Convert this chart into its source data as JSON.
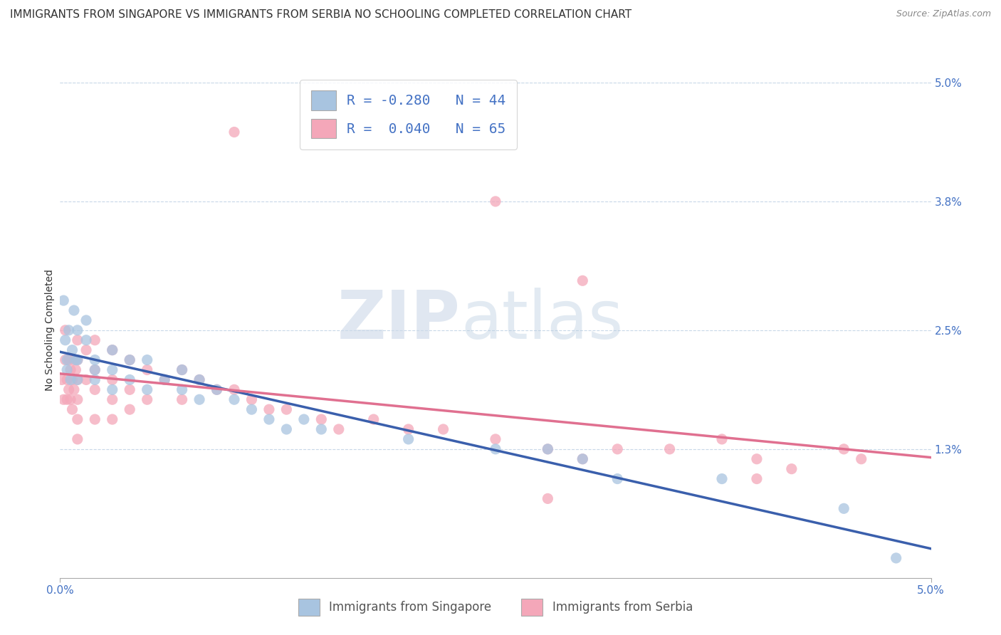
{
  "title": "IMMIGRANTS FROM SINGAPORE VS IMMIGRANTS FROM SERBIA NO SCHOOLING COMPLETED CORRELATION CHART",
  "source": "Source: ZipAtlas.com",
  "ylabel": "No Schooling Completed",
  "xlim": [
    0.0,
    0.05
  ],
  "ylim": [
    0.0,
    0.05
  ],
  "right_yticks": [
    0.05,
    0.038,
    0.025,
    0.013
  ],
  "right_yticklabels": [
    "5.0%",
    "3.8%",
    "2.5%",
    "1.3%"
  ],
  "xtick_positions": [
    0.0,
    0.05
  ],
  "xtick_labels": [
    "0.0%",
    "5.0%"
  ],
  "watermark_zip": "ZIP",
  "watermark_atlas": "atlas",
  "singapore_color": "#a8c4e0",
  "serbia_color": "#f4a7b9",
  "singapore_line_color": "#3a5fac",
  "serbia_line_color": "#e07090",
  "legend_r_singapore": "-0.280",
  "legend_n_singapore": "44",
  "legend_r_serbia": " 0.040",
  "legend_n_serbia": "65",
  "legend_label_singapore": "Immigrants from Singapore",
  "legend_label_serbia": "Immigrants from Serbia",
  "singapore_scatter_x": [
    0.0002,
    0.0003,
    0.0004,
    0.0004,
    0.0005,
    0.0006,
    0.0007,
    0.0008,
    0.0009,
    0.001,
    0.001,
    0.001,
    0.0015,
    0.0015,
    0.002,
    0.002,
    0.002,
    0.003,
    0.003,
    0.003,
    0.004,
    0.004,
    0.005,
    0.005,
    0.006,
    0.007,
    0.007,
    0.008,
    0.008,
    0.009,
    0.01,
    0.011,
    0.012,
    0.013,
    0.014,
    0.015,
    0.02,
    0.025,
    0.028,
    0.03,
    0.032,
    0.038,
    0.045,
    0.048
  ],
  "singapore_scatter_y": [
    0.028,
    0.024,
    0.022,
    0.021,
    0.025,
    0.02,
    0.023,
    0.027,
    0.022,
    0.025,
    0.022,
    0.02,
    0.026,
    0.024,
    0.022,
    0.021,
    0.02,
    0.023,
    0.021,
    0.019,
    0.022,
    0.02,
    0.022,
    0.019,
    0.02,
    0.021,
    0.019,
    0.02,
    0.018,
    0.019,
    0.018,
    0.017,
    0.016,
    0.015,
    0.016,
    0.015,
    0.014,
    0.013,
    0.013,
    0.012,
    0.01,
    0.01,
    0.007,
    0.002
  ],
  "serbia_scatter_x": [
    0.0001,
    0.0002,
    0.0003,
    0.0003,
    0.0004,
    0.0004,
    0.0005,
    0.0005,
    0.0006,
    0.0006,
    0.0007,
    0.0007,
    0.0008,
    0.0008,
    0.0009,
    0.001,
    0.001,
    0.001,
    0.001,
    0.001,
    0.001,
    0.0015,
    0.0015,
    0.002,
    0.002,
    0.002,
    0.002,
    0.003,
    0.003,
    0.003,
    0.003,
    0.004,
    0.004,
    0.004,
    0.005,
    0.005,
    0.006,
    0.007,
    0.007,
    0.008,
    0.009,
    0.01,
    0.011,
    0.012,
    0.013,
    0.015,
    0.016,
    0.018,
    0.02,
    0.022,
    0.025,
    0.028,
    0.03,
    0.032,
    0.035,
    0.038,
    0.04,
    0.042,
    0.045,
    0.046,
    0.01,
    0.025,
    0.03,
    0.04,
    0.028
  ],
  "serbia_scatter_y": [
    0.02,
    0.018,
    0.025,
    0.022,
    0.02,
    0.018,
    0.022,
    0.019,
    0.021,
    0.018,
    0.02,
    0.017,
    0.022,
    0.019,
    0.021,
    0.024,
    0.022,
    0.02,
    0.018,
    0.016,
    0.014,
    0.023,
    0.02,
    0.024,
    0.021,
    0.019,
    0.016,
    0.023,
    0.02,
    0.018,
    0.016,
    0.022,
    0.019,
    0.017,
    0.021,
    0.018,
    0.02,
    0.021,
    0.018,
    0.02,
    0.019,
    0.019,
    0.018,
    0.017,
    0.017,
    0.016,
    0.015,
    0.016,
    0.015,
    0.015,
    0.014,
    0.013,
    0.012,
    0.013,
    0.013,
    0.014,
    0.012,
    0.011,
    0.013,
    0.012,
    0.045,
    0.038,
    0.03,
    0.01,
    0.008
  ],
  "background_color": "#ffffff",
  "grid_color": "#c8d8e8",
  "title_fontsize": 11,
  "axis_label_fontsize": 10,
  "tick_fontsize": 11
}
